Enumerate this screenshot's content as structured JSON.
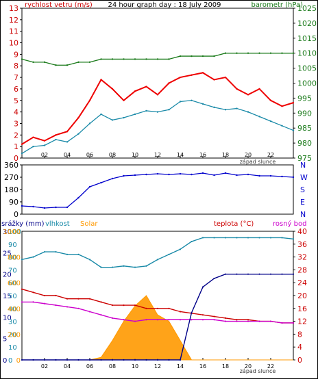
{
  "top": {
    "left_title": "rychlost vetru (m/s)",
    "center_title": "24 hour graph day : 18 July 2009",
    "right_title": "barometr (hPa)",
    "left_ticks": [
      "0",
      "1",
      "2",
      "3",
      "4",
      "5",
      "6",
      "7",
      "8",
      "9",
      "10",
      "11",
      "12",
      "13"
    ],
    "right_ticks": [
      "975",
      "980",
      "985",
      "990",
      "995",
      "1000",
      "1005",
      "1010",
      "1015",
      "1020",
      "1025"
    ],
    "x_ticks": [
      "02",
      "04",
      "06",
      "08",
      "10",
      "12",
      "14",
      "16",
      "18",
      "20",
      "22"
    ],
    "sunset_label": "západ slunce",
    "colors": {
      "gust": "#ee0000",
      "wind": "#1a8aa8",
      "baro": "#1a7a1a",
      "left_axis": "#cc0000",
      "right_axis": "#1a7a1a"
    }
  },
  "middle": {
    "left_ticks": [
      "0",
      "90",
      "180",
      "270",
      "360"
    ],
    "right_ticks": [
      "N",
      "E",
      "S",
      "W",
      "N"
    ],
    "color": "#0000cc"
  },
  "bottom": {
    "labels": {
      "srazky": "srážky (mm)",
      "vlhkost": "vlhkost",
      "solar": "Solar",
      "teplota": "teplota (°C)",
      "rosny": "rosný bod"
    },
    "col1_ticks": [
      "0",
      "5",
      "10",
      "15",
      "20",
      "25",
      "30"
    ],
    "col2_ticks": [
      "0",
      "10",
      "20",
      "30",
      "40",
      "50",
      "60",
      "70",
      "80",
      "90",
      "100"
    ],
    "col3_ticks": [
      "0",
      "200",
      "400",
      "600",
      "800",
      "1000"
    ],
    "right_ticks": [
      "0",
      "4",
      "8",
      "12",
      "16",
      "20",
      "24",
      "28",
      "32",
      "36",
      "40"
    ],
    "x_ticks": [
      "02",
      "04",
      "06",
      "08",
      "10",
      "12",
      "14",
      "16",
      "18",
      "20",
      "22"
    ],
    "sunset_label": "západ slunce",
    "colors": {
      "srazky": "#000088",
      "vlhkost": "#1a8aa8",
      "solar": "#ff9900",
      "teplota": "#cc0000",
      "rosny": "#cc00cc"
    }
  },
  "chart_data": [
    {
      "type": "line",
      "title": "24 hour graph day : 18 July 2009",
      "ylabel": "rychlost vetru (m/s)",
      "y2label": "barometr (hPa)",
      "xlim": [
        0,
        24
      ],
      "ylim": [
        0,
        13
      ],
      "y2lim": [
        975,
        1025
      ],
      "x": [
        0,
        1,
        2,
        3,
        4,
        5,
        6,
        7,
        8,
        9,
        10,
        11,
        12,
        13,
        14,
        15,
        16,
        17,
        18,
        19,
        20,
        21,
        22,
        23,
        24
      ],
      "series": [
        {
          "name": "rychlost vetru (gust)",
          "axis": "left",
          "values": [
            1.2,
            1.8,
            1.5,
            2.0,
            2.3,
            3.5,
            5.0,
            6.8,
            6.0,
            5.0,
            5.8,
            6.2,
            5.5,
            6.5,
            7.0,
            7.2,
            7.4,
            6.8,
            7.0,
            6.0,
            5.5,
            6.0,
            5.0,
            4.5,
            4.8
          ]
        },
        {
          "name": "rychlost vetru (avg)",
          "axis": "left",
          "values": [
            0.4,
            1.0,
            1.1,
            1.6,
            1.4,
            2.1,
            3.0,
            3.8,
            3.3,
            3.5,
            3.8,
            4.1,
            4.0,
            4.2,
            4.9,
            5.0,
            4.7,
            4.4,
            4.2,
            4.3,
            4.0,
            3.6,
            3.2,
            2.8,
            2.4
          ]
        },
        {
          "name": "barometr",
          "axis": "right",
          "values": [
            1008,
            1007,
            1007,
            1006,
            1006,
            1007,
            1007,
            1008,
            1008,
            1008,
            1008,
            1008,
            1008,
            1008,
            1009,
            1009,
            1009,
            1009,
            1010,
            1010,
            1010,
            1010,
            1010,
            1010,
            1010
          ]
        }
      ]
    },
    {
      "type": "line",
      "title": "",
      "ylabel": "",
      "xlim": [
        0,
        24
      ],
      "ylim": [
        0,
        360
      ],
      "x": [
        0,
        1,
        2,
        3,
        4,
        5,
        6,
        7,
        8,
        9,
        10,
        11,
        12,
        13,
        14,
        15,
        16,
        17,
        18,
        19,
        20,
        21,
        22,
        23,
        24
      ],
      "series": [
        {
          "name": "",
          "values": [
            60,
            55,
            45,
            50,
            50,
            120,
            200,
            230,
            260,
            280,
            285,
            290,
            295,
            290,
            295,
            290,
            300,
            285,
            300,
            285,
            290,
            280,
            280,
            275,
            270
          ]
        }
      ]
    },
    {
      "type": "line",
      "title": "",
      "xlim": [
        0,
        24
      ],
      "x": [
        0,
        1,
        2,
        3,
        4,
        5,
        6,
        7,
        8,
        9,
        10,
        11,
        12,
        13,
        14,
        15,
        16,
        17,
        18,
        19,
        20,
        21,
        22,
        23,
        24
      ],
      "series": [
        {
          "name": "srážky (mm)",
          "axis": "col1",
          "ylim": [
            0,
            30
          ],
          "values": [
            0,
            0,
            0,
            0,
            0,
            0,
            0,
            0,
            0,
            0,
            0,
            0,
            0,
            0,
            0,
            11,
            17,
            19,
            20,
            20,
            20,
            20,
            20,
            20,
            20
          ]
        },
        {
          "name": "vlhkost",
          "axis": "col2",
          "ylim": [
            0,
            100
          ],
          "values": [
            78,
            80,
            84,
            84,
            82,
            82,
            78,
            72,
            72,
            73,
            72,
            73,
            78,
            82,
            86,
            92,
            95,
            95,
            95,
            95,
            95,
            95,
            95,
            95,
            94
          ]
        },
        {
          "name": "Solar",
          "axis": "col3",
          "ylim": [
            0,
            1000
          ],
          "values": [
            0,
            0,
            0,
            0,
            0,
            0,
            0,
            20,
            150,
            300,
            420,
            500,
            350,
            300,
            150,
            0,
            0,
            0,
            0,
            0,
            0,
            0,
            0,
            0,
            0
          ]
        },
        {
          "name": "teplota (°C)",
          "axis": "right",
          "ylim": [
            0,
            40
          ],
          "values": [
            22,
            21,
            20,
            20,
            19,
            19,
            19,
            18,
            17,
            17,
            17,
            16,
            16,
            16,
            15,
            14.5,
            14,
            13.5,
            13,
            12.5,
            12.5,
            12,
            12,
            11.5,
            11.5
          ]
        },
        {
          "name": "rosný bod",
          "axis": "right",
          "ylim": [
            0,
            40
          ],
          "values": [
            18,
            18,
            17.5,
            17,
            16.5,
            16,
            15,
            14,
            13,
            12.5,
            12,
            12.5,
            12.5,
            12.5,
            12.5,
            12.5,
            12.5,
            12.5,
            12,
            12,
            12,
            12,
            12,
            11.5,
            11.5
          ]
        }
      ]
    }
  ]
}
